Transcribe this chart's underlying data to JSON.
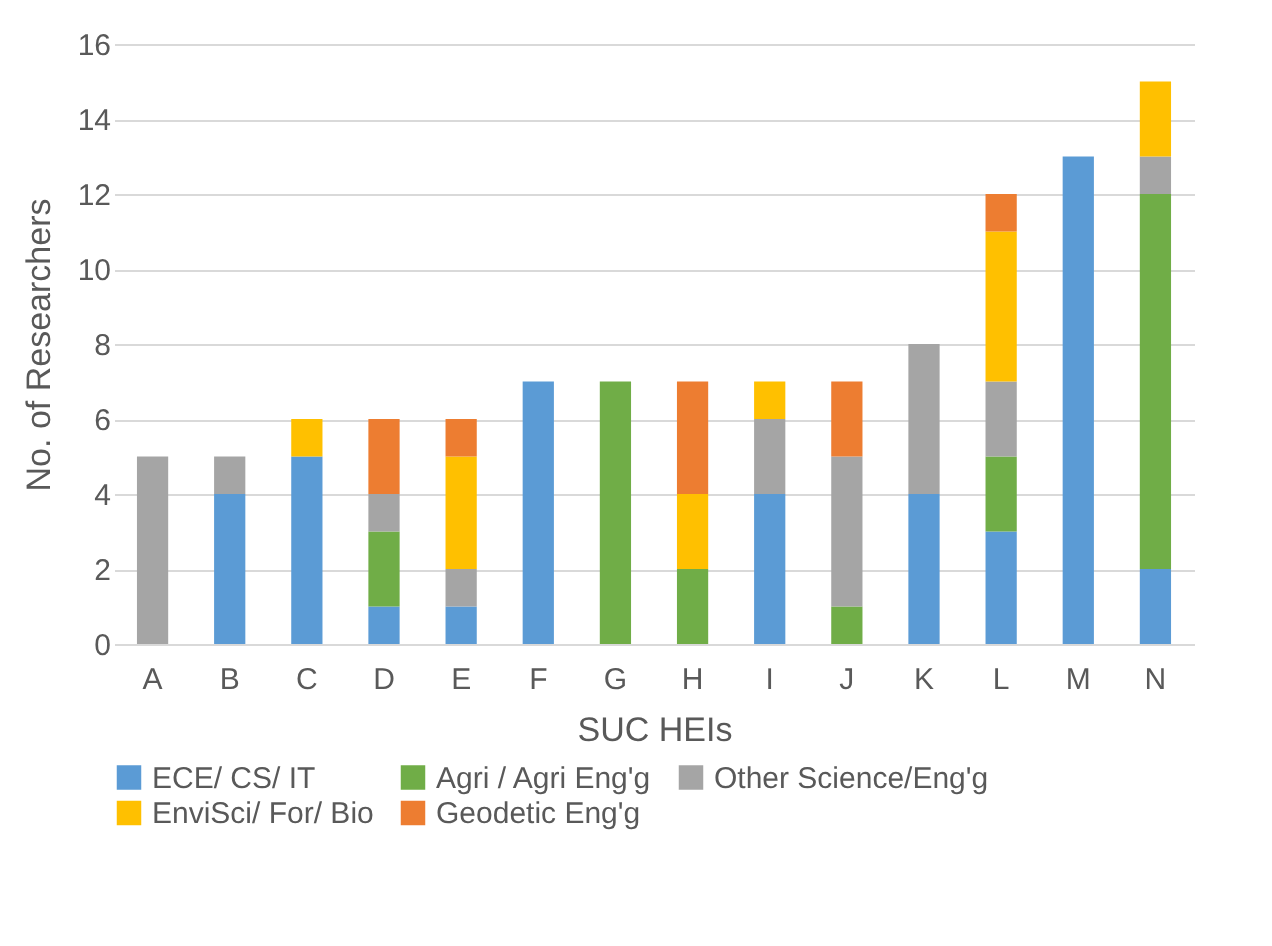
{
  "chart_data": {
    "type": "bar",
    "stacked": true,
    "xlabel": "SUC HEIs",
    "ylabel": "No. of Researchers",
    "categories": [
      "A",
      "B",
      "C",
      "D",
      "E",
      "F",
      "G",
      "H",
      "I",
      "J",
      "K",
      "L",
      "M",
      "N"
    ],
    "series": [
      {
        "name": "ECE/ CS/ IT",
        "color": "#5b9bd5",
        "values": [
          0,
          4,
          5,
          1,
          1,
          7,
          0,
          0,
          4,
          0,
          4,
          3,
          13,
          2
        ]
      },
      {
        "name": "Agri / Agri Eng'g",
        "color": "#70ad47",
        "values": [
          0,
          0,
          0,
          2,
          0,
          0,
          7,
          2,
          0,
          1,
          0,
          2,
          0,
          10
        ]
      },
      {
        "name": "Other Science/Eng'g",
        "color": "#a5a5a5",
        "values": [
          5,
          1,
          0,
          1,
          1,
          0,
          0,
          0,
          2,
          4,
          4,
          2,
          0,
          1
        ]
      },
      {
        "name": "EnviSci/ For/ Bio",
        "color": "#ffc000",
        "values": [
          0,
          0,
          1,
          0,
          3,
          0,
          0,
          2,
          1,
          0,
          0,
          4,
          0,
          2
        ]
      },
      {
        "name": "Geodetic Eng'g",
        "color": "#ed7d31",
        "values": [
          0,
          0,
          0,
          2,
          1,
          0,
          0,
          3,
          0,
          2,
          0,
          1,
          0,
          0
        ]
      }
    ],
    "ylim": [
      0,
      16
    ],
    "yticks": [
      0,
      2,
      4,
      6,
      8,
      10,
      12,
      14,
      16
    ],
    "grid": "y",
    "legend": "bottom"
  }
}
